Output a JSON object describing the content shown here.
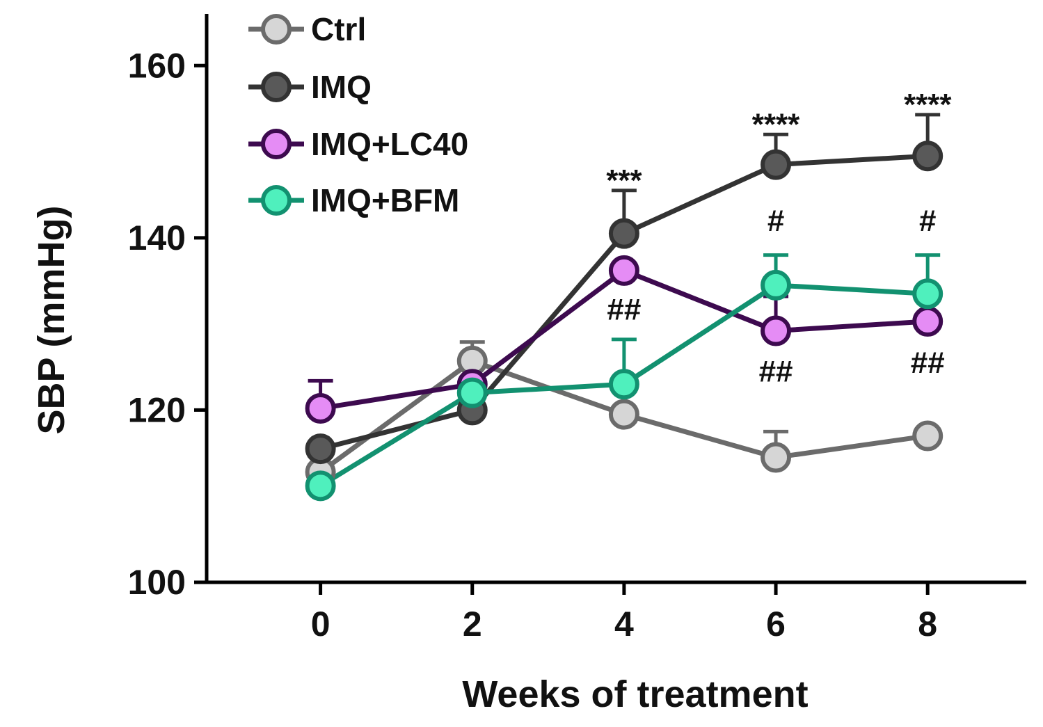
{
  "chart_data": {
    "type": "line",
    "xlabel": "Weeks of treatment",
    "ylabel": "SBP (mmHg)",
    "xlim": [
      -1.5,
      9.3
    ],
    "ylim": [
      100,
      166
    ],
    "x_ticks": [
      0,
      2,
      4,
      6,
      8
    ],
    "y_ticks": [
      100,
      120,
      140,
      160
    ],
    "legend_position": "top-left",
    "series": [
      {
        "name": "Ctrl",
        "color": "#6b6b6b",
        "fill": "#d6d6d6",
        "x": [
          0,
          2,
          4,
          6,
          8
        ],
        "y": [
          112.8,
          125.7,
          119.5,
          114.5,
          117
        ],
        "err": [
          0.6,
          2.2,
          0.6,
          3.0,
          0.6
        ]
      },
      {
        "name": "IMQ",
        "color": "#333333",
        "fill": "#595959",
        "x": [
          0,
          2,
          4,
          6,
          8
        ],
        "y": [
          115.5,
          120,
          140.5,
          148.5,
          149.5
        ],
        "err": [
          0.6,
          0.6,
          5.0,
          3.5,
          4.8
        ]
      },
      {
        "name": "IMQ+LC40",
        "color": "#3d0a4f",
        "fill": "#e58cf5",
        "x": [
          0,
          2,
          4,
          6,
          8
        ],
        "y": [
          120.2,
          123,
          136.2,
          129.2,
          130.3
        ],
        "err": [
          3.2,
          2.2,
          0.6,
          4.0,
          2.8
        ]
      },
      {
        "name": "IMQ+BFM",
        "color": "#129170",
        "fill": "#4ff0bd",
        "x": [
          0,
          2,
          4,
          6,
          8
        ],
        "y": [
          111.2,
          122,
          123,
          134.5,
          133.5
        ],
        "err": [
          0.6,
          0.6,
          5.2,
          3.5,
          4.5
        ]
      }
    ],
    "annotations": [
      {
        "x": 4,
        "y": 145.5,
        "text": "***"
      },
      {
        "x": 6,
        "y": 152,
        "text": "****"
      },
      {
        "x": 8,
        "y": 154.3,
        "text": "****"
      },
      {
        "x": 6,
        "y": 140.8,
        "text": "#"
      },
      {
        "x": 8,
        "y": 140.8,
        "text": "#"
      },
      {
        "x": 4,
        "y": 130.5,
        "text": "##"
      },
      {
        "x": 6,
        "y": 123.3,
        "text": "##"
      },
      {
        "x": 8,
        "y": 124.3,
        "text": "##"
      }
    ]
  }
}
